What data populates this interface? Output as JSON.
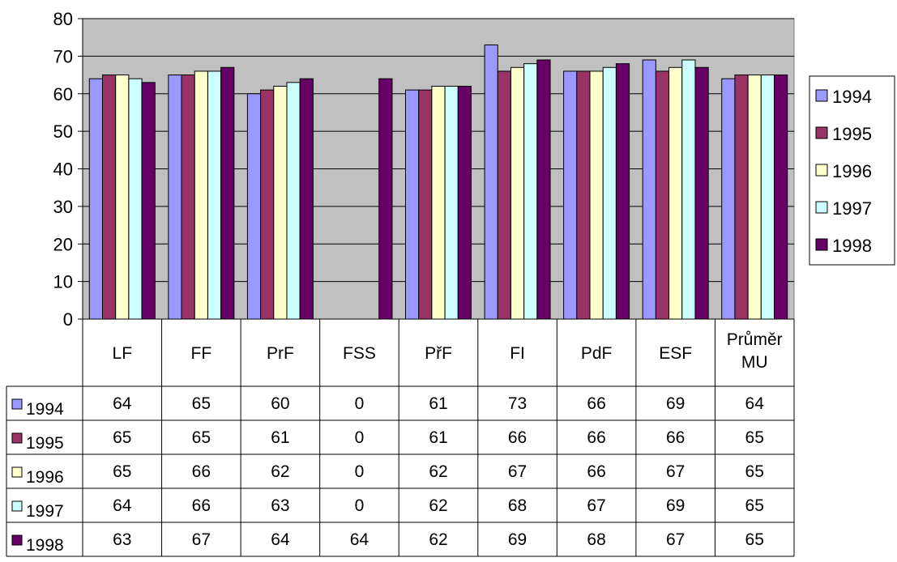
{
  "chart_data": {
    "type": "bar",
    "categories": [
      "LF",
      "FF",
      "PrF",
      "FSS",
      "PřF",
      "FI",
      "PdF",
      "ESF",
      "Průměr MU"
    ],
    "series": [
      {
        "name": "1994",
        "color": "#9999ff",
        "values": [
          64,
          65,
          60,
          0,
          61,
          73,
          66,
          69,
          64
        ]
      },
      {
        "name": "1995",
        "color": "#993366",
        "values": [
          65,
          65,
          61,
          0,
          61,
          66,
          66,
          66,
          65
        ]
      },
      {
        "name": "1996",
        "color": "#ffffcc",
        "values": [
          65,
          66,
          62,
          0,
          62,
          67,
          66,
          67,
          65
        ]
      },
      {
        "name": "1997",
        "color": "#ccffff",
        "values": [
          64,
          66,
          63,
          0,
          62,
          68,
          67,
          69,
          65
        ]
      },
      {
        "name": "1998",
        "color": "#660066",
        "values": [
          63,
          67,
          64,
          64,
          62,
          69,
          68,
          67,
          65
        ]
      }
    ],
    "ylim": [
      0,
      80
    ],
    "yticks": [
      0,
      10,
      20,
      30,
      40,
      50,
      60,
      70,
      80
    ],
    "grid": true,
    "plot_background": "#c0c0c0",
    "legend_position": "right",
    "data_table": true
  }
}
